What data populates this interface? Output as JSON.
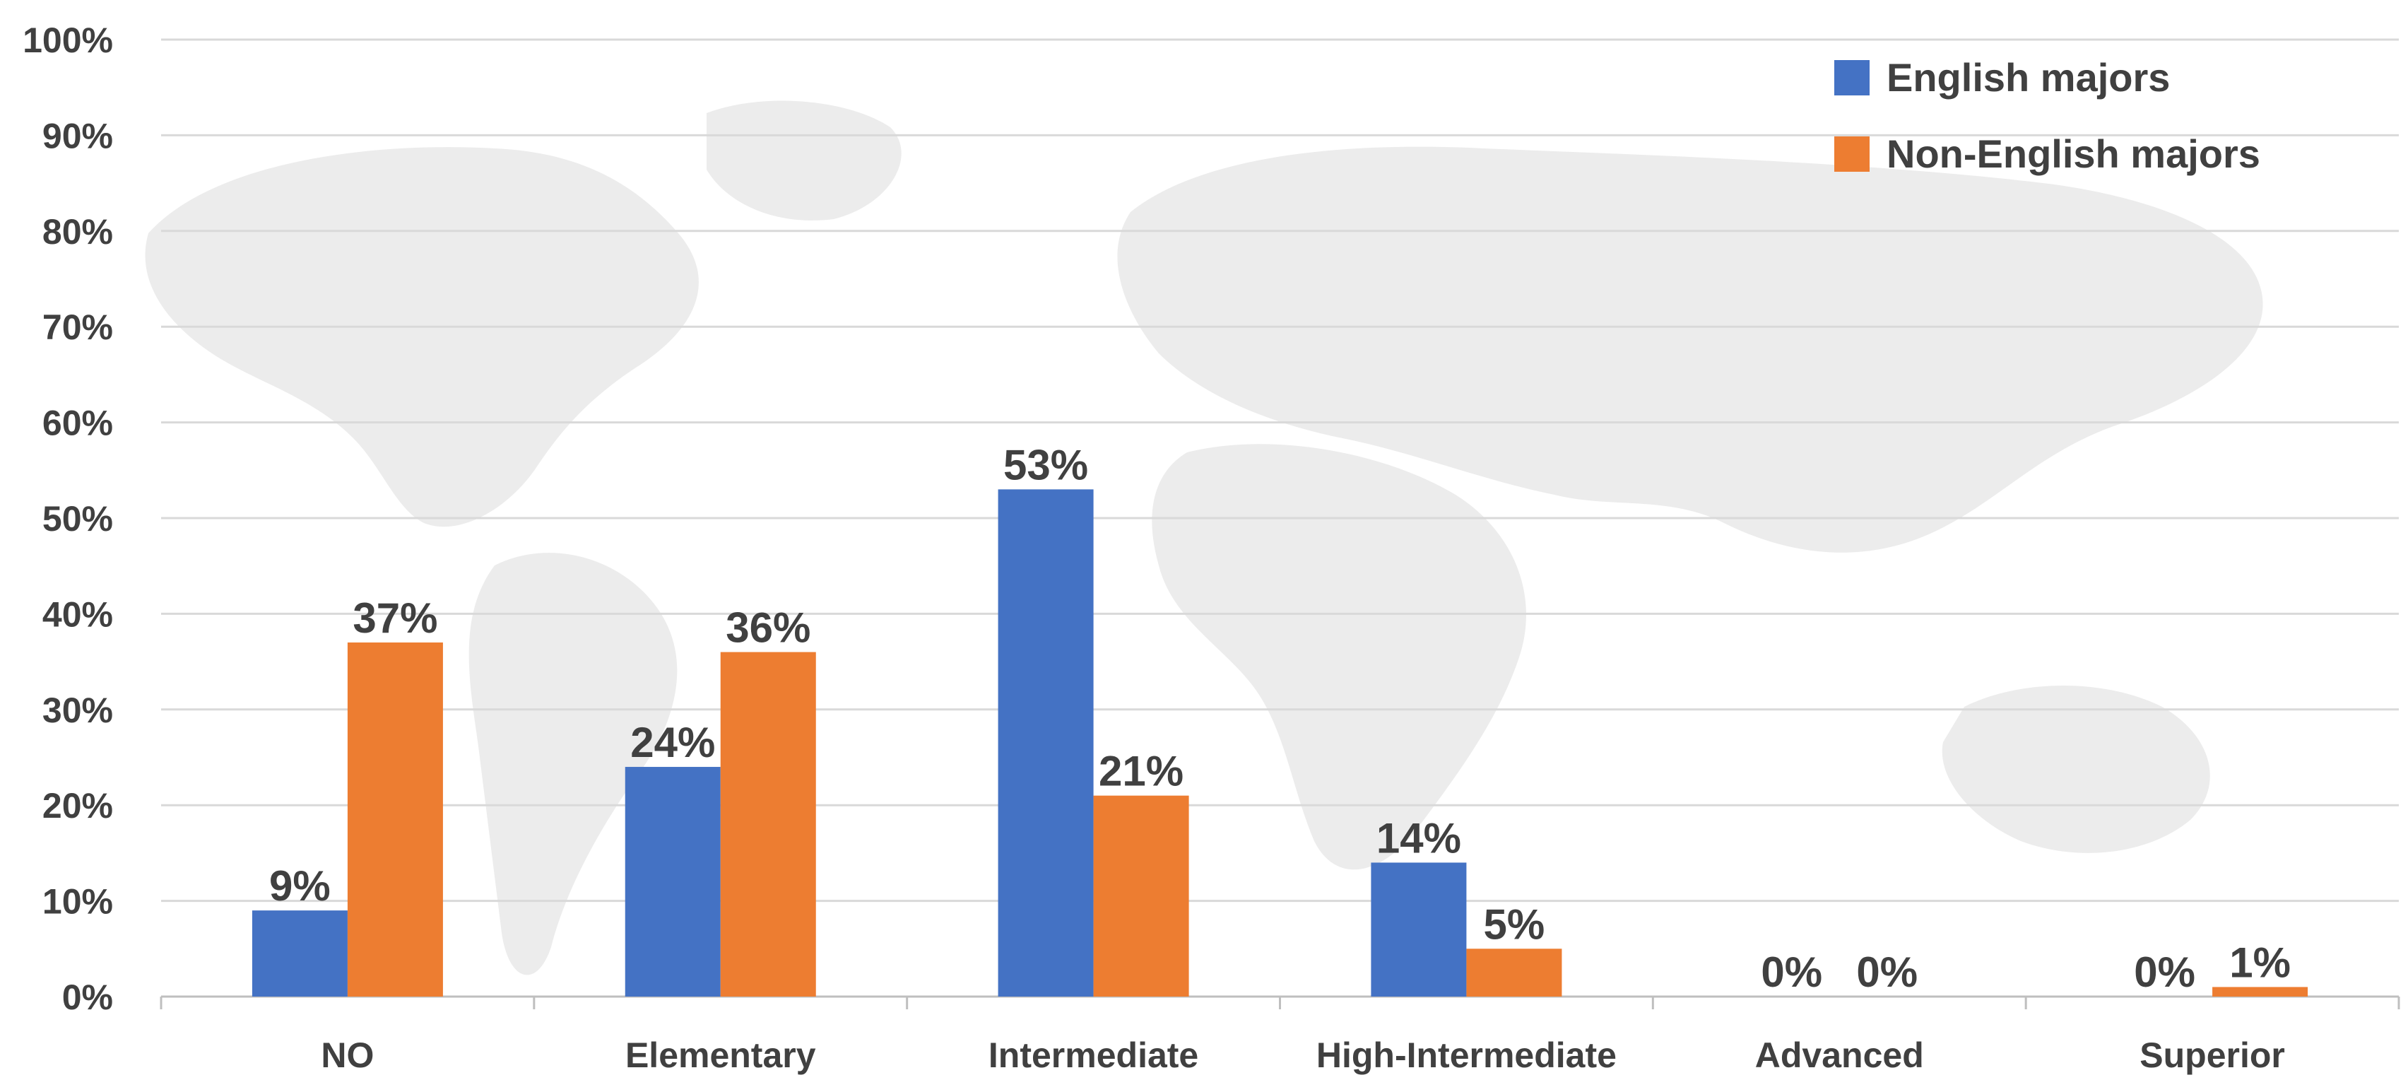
{
  "chart_data": {
    "type": "bar",
    "categories": [
      "NO",
      "Elementary",
      "Intermediate",
      "High-Intermediate",
      "Advanced",
      "Superior"
    ],
    "series": [
      {
        "name": "English majors",
        "values": [
          9,
          24,
          53,
          14,
          0,
          0
        ],
        "labels": [
          "9%",
          "24%",
          "53%",
          "14%",
          "0%",
          "0%"
        ],
        "color": "#4472C4"
      },
      {
        "name": "Non-English majors",
        "values": [
          37,
          36,
          21,
          5,
          0,
          1
        ],
        "labels": [
          "37%",
          "36%",
          "21%",
          "5%",
          "0%",
          "1%"
        ],
        "color": "#ED7D31"
      }
    ],
    "ylim": [
      0,
      100
    ],
    "yticks": [
      "0%",
      "10%",
      "20%",
      "30%",
      "40%",
      "50%",
      "60%",
      "70%",
      "80%",
      "90%",
      "100%"
    ],
    "grid": true,
    "legend_position": "top-right",
    "background": "faint world map watermark",
    "colors": {
      "grid": "#D9D9D9",
      "text": "#404040",
      "watermark": "#EBEBEB"
    }
  }
}
